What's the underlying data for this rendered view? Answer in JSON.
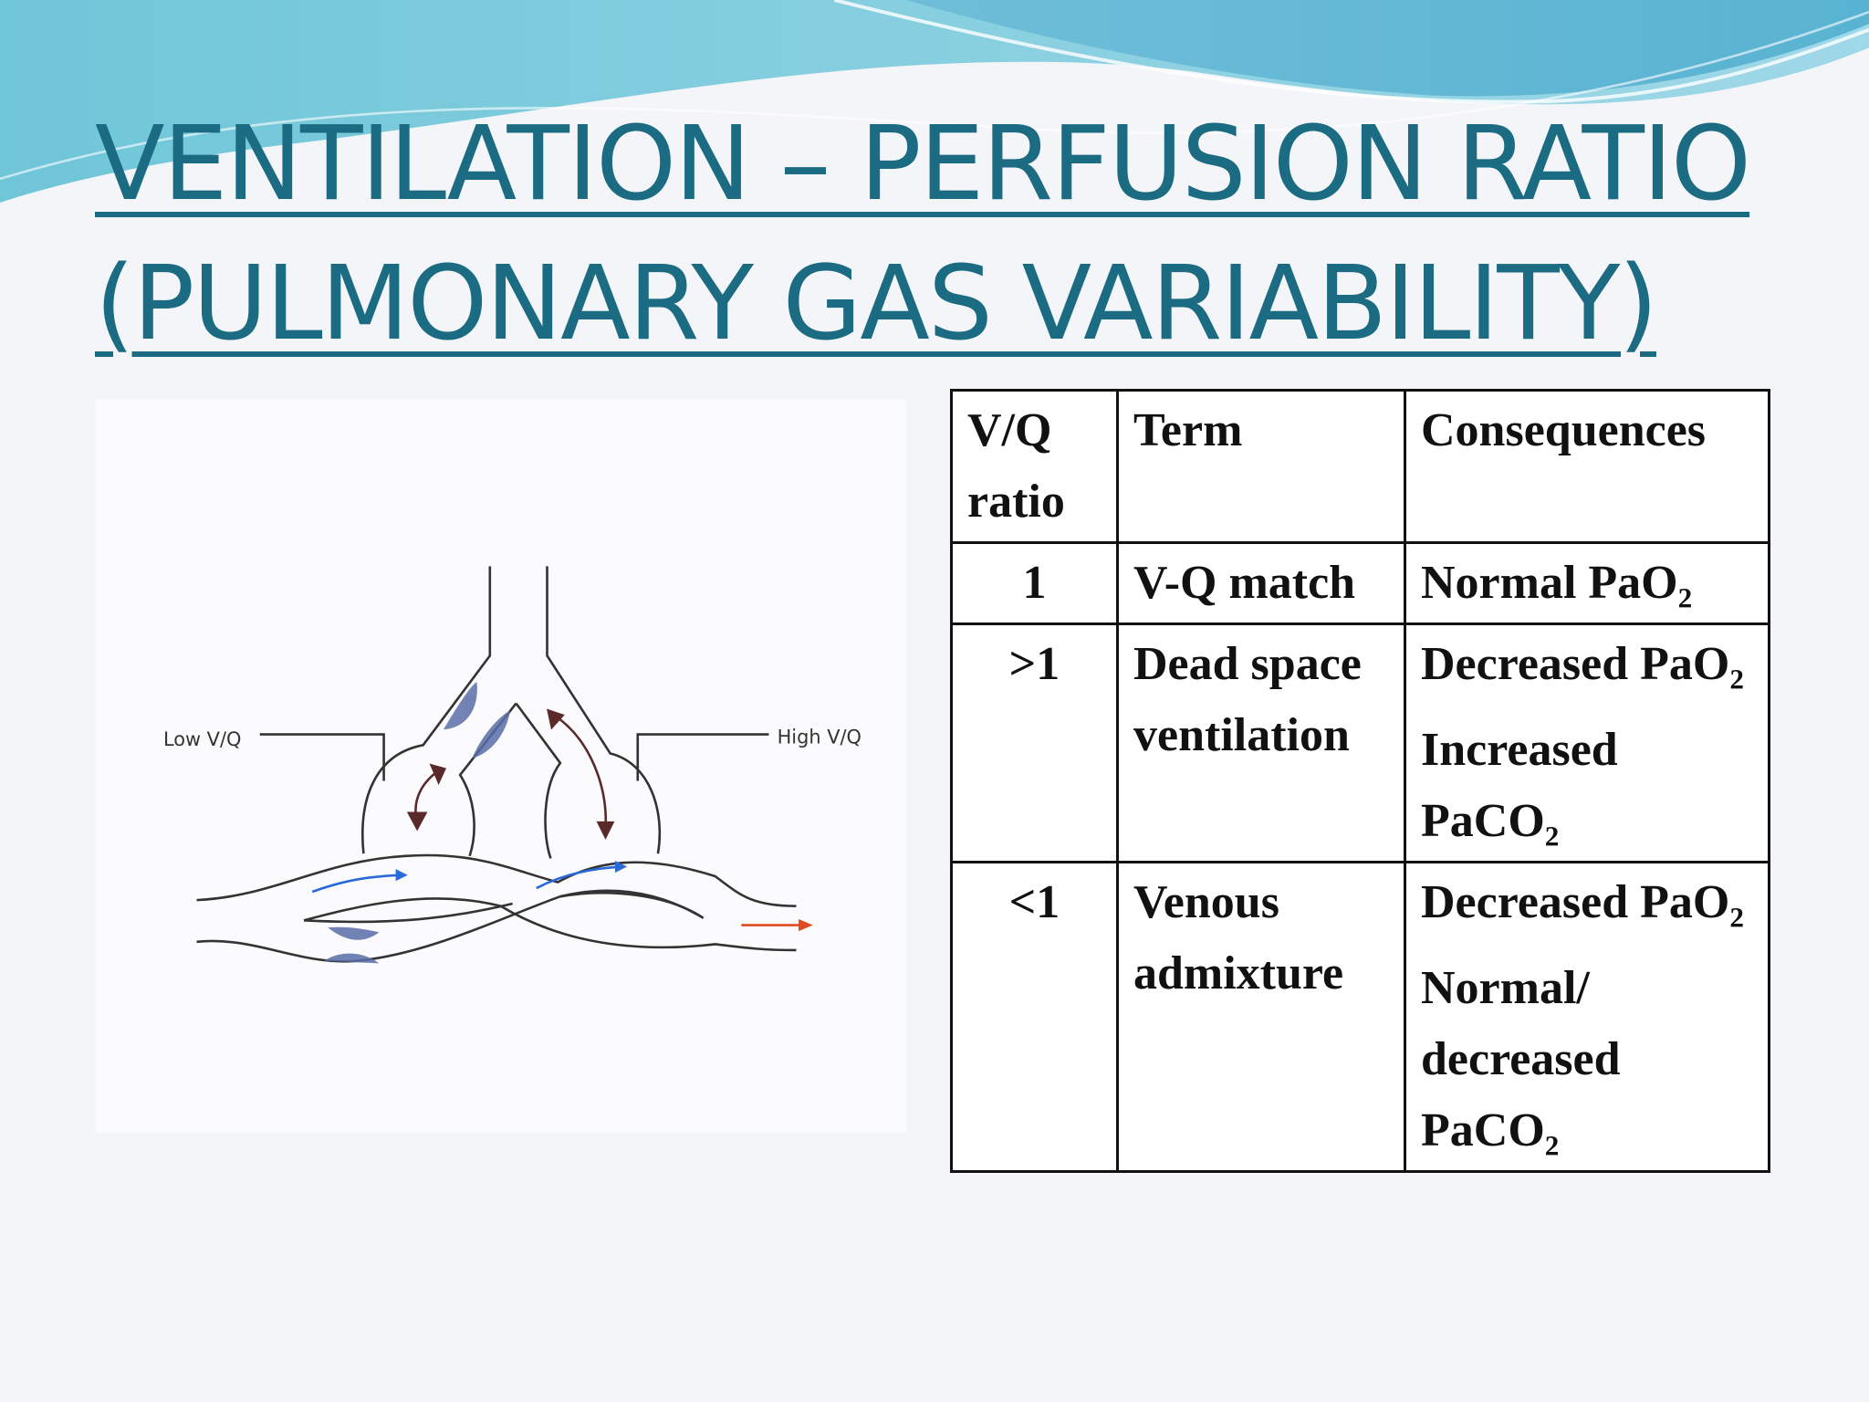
{
  "title": {
    "lines": [
      "VENTILATION – PERFUSION RATIO",
      "(PULMONARY GAS VARIABILITY)"
    ]
  },
  "diagram": {
    "labels": [
      "Low V/Q",
      "High V/Q"
    ]
  },
  "table": {
    "header": [
      "V/Q ratio",
      "Term",
      "Consequences"
    ],
    "rows": [
      [
        "1",
        "V-Q match",
        [
          "Normal PaO₂"
        ]
      ],
      [
        ">1",
        "Dead space ventilation",
        [
          "Decreased PaO₂",
          "Increased PaCO₂"
        ]
      ],
      [
        "<1",
        "Venous admixture",
        [
          "Decreased PaO₂",
          "Normal/ decreased PaCO₂"
        ]
      ]
    ]
  }
}
